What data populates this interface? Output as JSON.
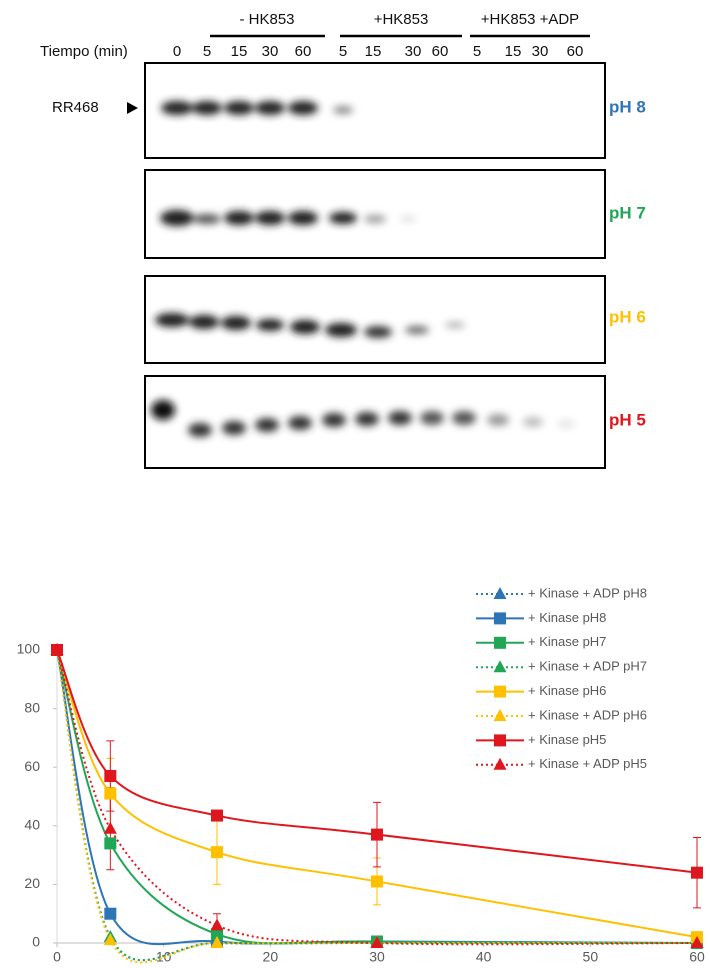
{
  "gel": {
    "groups": [
      "- HK853",
      "+HK853",
      "+HK853 +ADP"
    ],
    "time_label": "Tiempo (min)",
    "times": [
      "0",
      "5",
      "15",
      "30",
      "60",
      "5",
      "15",
      "30",
      "60",
      "5",
      "15",
      "30",
      "60"
    ],
    "marker_label": "RR468",
    "panels": [
      {
        "label": "pH 8",
        "color": "#2e75b6"
      },
      {
        "label": "pH 7",
        "color": "#21a656"
      },
      {
        "label": "pH 6",
        "color": "#ffc000"
      },
      {
        "label": "pH 5",
        "color": "#e0161e"
      }
    ]
  },
  "chart_data": {
    "type": "line",
    "x": [
      0,
      5,
      15,
      30,
      60
    ],
    "xlim": [
      0,
      60
    ],
    "xticks": [
      0,
      10,
      20,
      30,
      40,
      50,
      60
    ],
    "ylim": [
      0,
      100
    ],
    "yticks": [
      0,
      20,
      40,
      60,
      80,
      100
    ],
    "series": [
      {
        "name": "+ Kinase + ADP pH8",
        "color": "#2e75b6",
        "line": "dotted",
        "marker": "triangle",
        "values": [
          100,
          2,
          0,
          0,
          0
        ]
      },
      {
        "name": "+ Kinase pH8",
        "color": "#2e75b6",
        "line": "solid",
        "marker": "square",
        "values": [
          100,
          10,
          0.5,
          0.5,
          0
        ]
      },
      {
        "name": "+ Kinase pH7",
        "color": "#21a656",
        "line": "solid",
        "marker": "square",
        "values": [
          100,
          34,
          3,
          0.5,
          0
        ]
      },
      {
        "name": "+ Kinase + ADP pH7",
        "color": "#21a656",
        "line": "dotted",
        "marker": "triangle",
        "values": [
          100,
          2,
          0,
          0,
          0
        ]
      },
      {
        "name": "+ Kinase pH6",
        "color": "#ffc000",
        "line": "solid",
        "marker": "square",
        "values": [
          100,
          51,
          31,
          21,
          2
        ],
        "errors": [
          0,
          12,
          11,
          8,
          0
        ]
      },
      {
        "name": "+ Kinase + ADP pH6",
        "color": "#ffc000",
        "line": "dotted",
        "marker": "triangle",
        "values": [
          100,
          1,
          0,
          0,
          0
        ]
      },
      {
        "name": "+ Kinase pH5",
        "color": "#e0161e",
        "line": "solid",
        "marker": "square",
        "values": [
          100,
          57,
          43.5,
          37,
          24
        ],
        "errors": [
          0,
          12,
          0,
          11,
          12
        ]
      },
      {
        "name": "+ Kinase + ADP pH5",
        "color": "#e0161e",
        "line": "dotted",
        "marker": "triangle",
        "values": [
          100,
          39,
          6,
          0,
          0
        ],
        "errors": [
          0,
          14,
          4,
          0,
          0
        ]
      }
    ]
  }
}
